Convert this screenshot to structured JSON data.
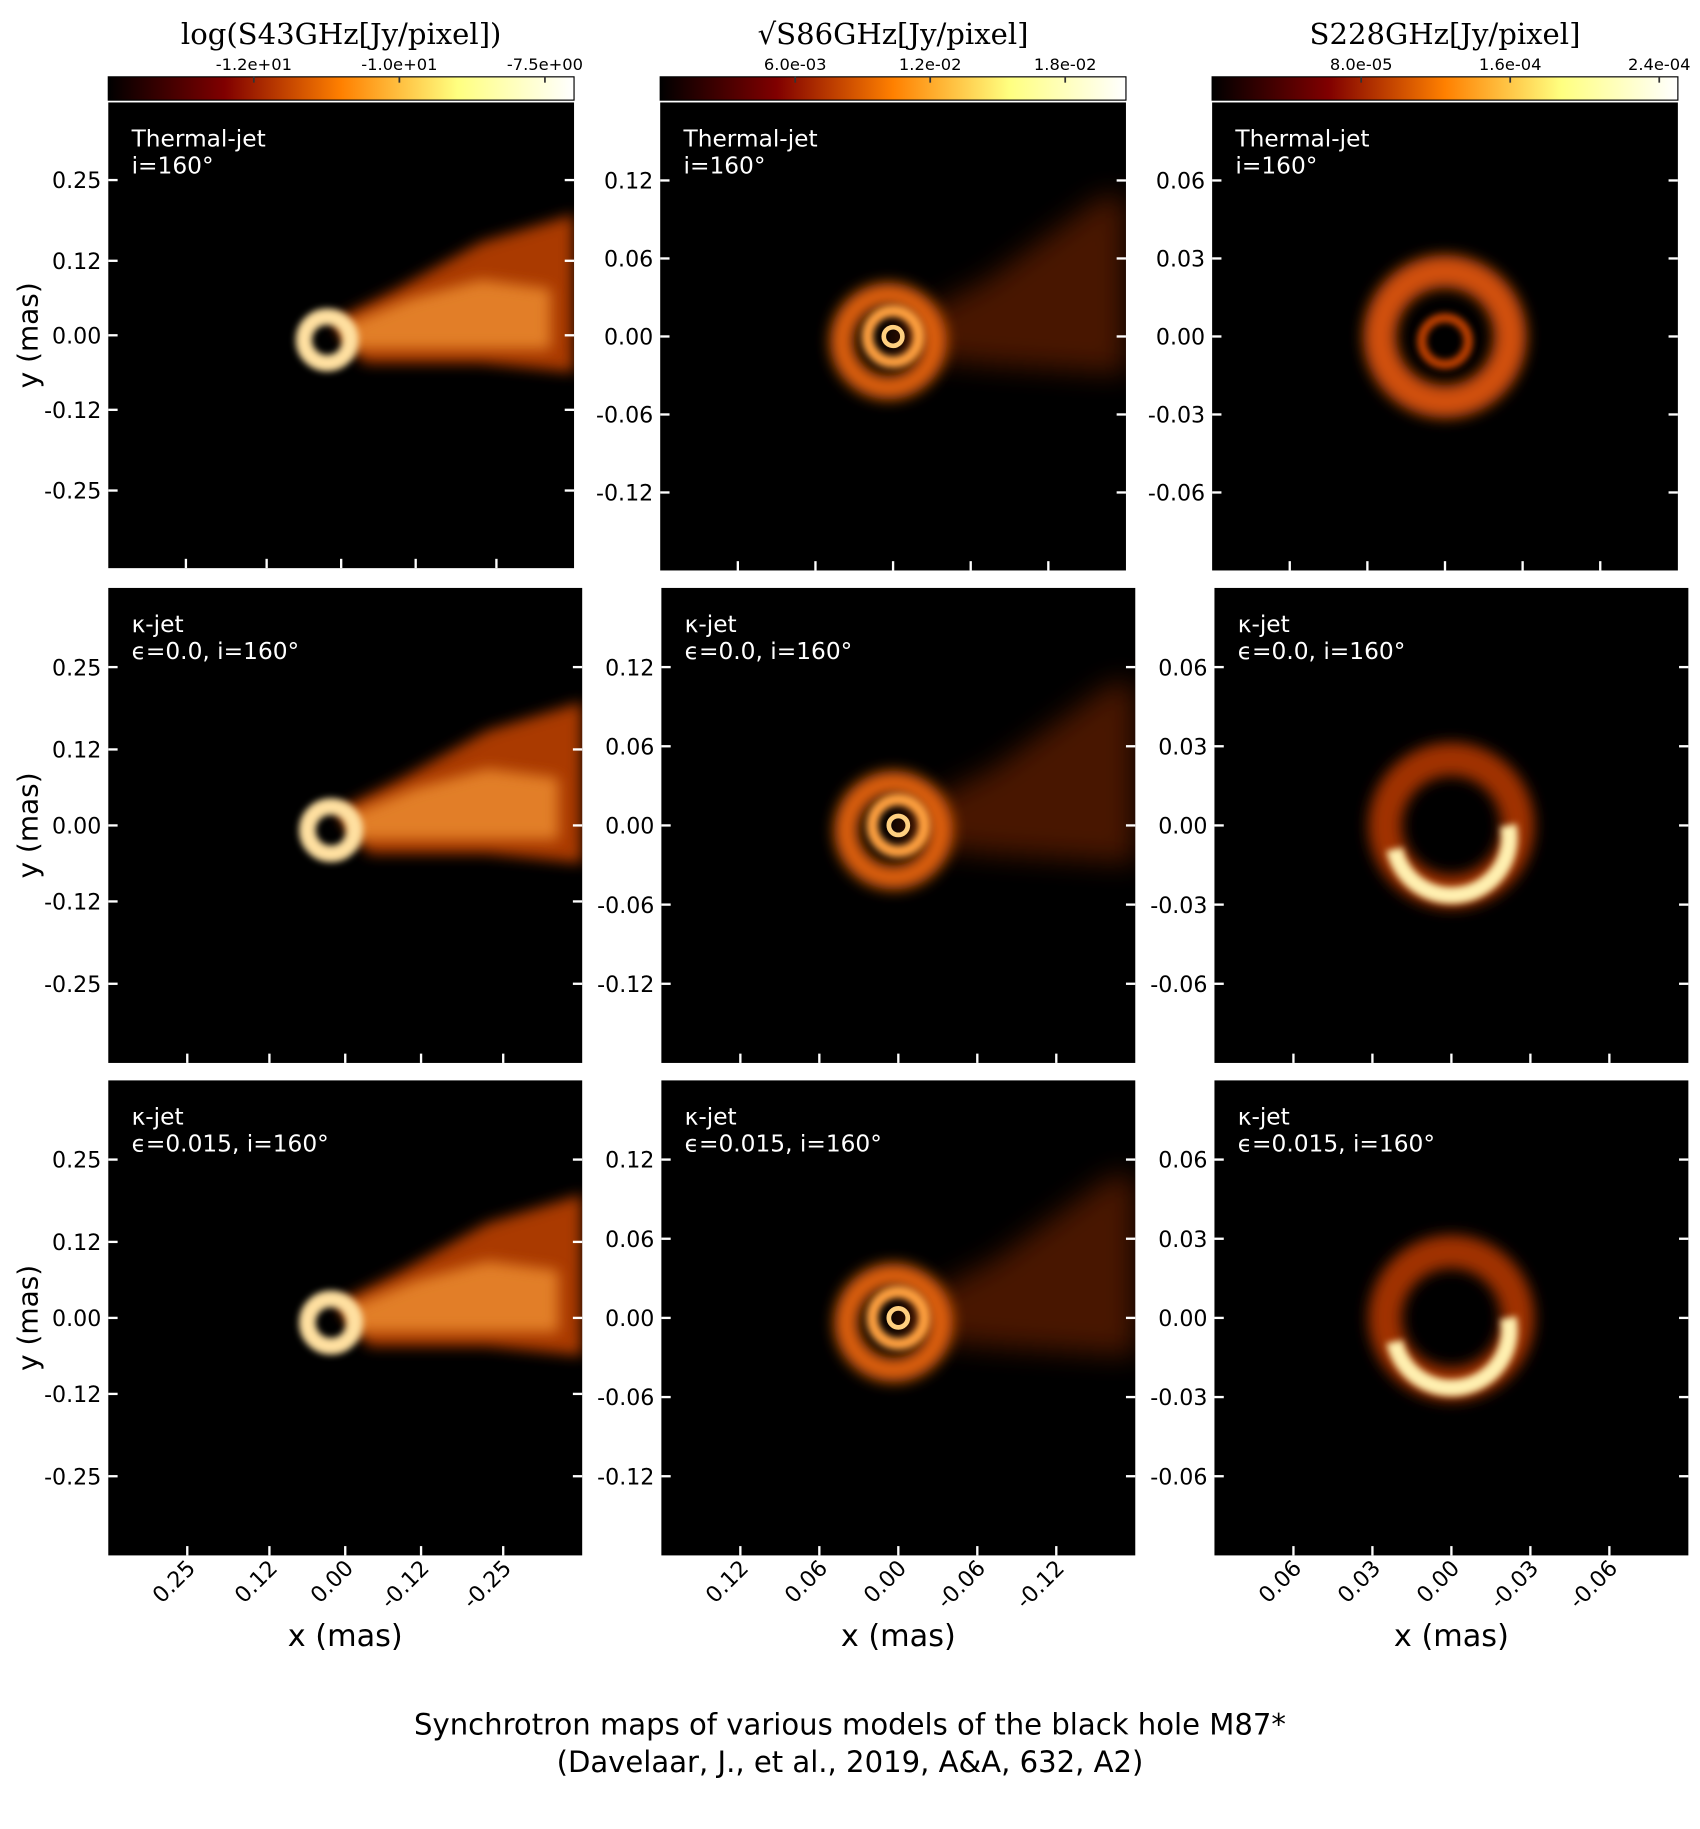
{
  "caption": [
    "Synchrotron maps of various models of the black hole M87*",
    "(Davelaar, J., et al., 2019, A&A, 632, A2)"
  ],
  "chart_data": [
    {
      "type": "image",
      "labels": [
        "Thermal-jet",
        "i=160°"
      ],
      "xlim": [
        0.375,
        -0.375
      ],
      "ylim": [
        -0.375,
        0.375
      ],
      "yticks": [
        0.25,
        0.12,
        {
          "value": 0,
          "label": "0.00"
        },
        -0.12,
        -0.25
      ],
      "ylabel": "y (mas)",
      "colorbar": {
        "title": "log(S43GHz[Jy/pixel])",
        "colormap": "afmhot",
        "clim": [
          -15,
          -7
        ],
        "ticks": [
          {
            "value": -12.5,
            "label": "-1.2e+01"
          },
          {
            "value": -10,
            "label": "-1.0e+01"
          },
          {
            "value": -7.5,
            "label": "-7.5e+00"
          }
        ]
      }
    },
    {
      "type": "image",
      "labels": [
        "Thermal-jet",
        "i=160°"
      ],
      "xlim": [
        0.18,
        -0.18
      ],
      "ylim": [
        -0.18,
        0.18
      ],
      "yticks": [
        0.12,
        0.06,
        {
          "value": 0,
          "label": "0.00"
        },
        -0.06,
        -0.12
      ],
      "colorbar": {
        "title": "√S86GHz[Jy/pixel]",
        "colormap": "afmhot",
        "clim": [
          0,
          0.0207
        ],
        "ticks": [
          {
            "value": 0.006,
            "label": "6.0e-03"
          },
          {
            "value": 0.012,
            "label": "1.2e-02"
          },
          {
            "value": 0.018,
            "label": "1.8e-02"
          }
        ]
      }
    },
    {
      "type": "image",
      "labels": [
        "Thermal-jet",
        "i=160°"
      ],
      "xlim": [
        0.09,
        -0.09
      ],
      "ylim": [
        -0.09,
        0.09
      ],
      "yticks": [
        0.06,
        0.03,
        {
          "value": 0,
          "label": "0.00"
        },
        -0.03,
        -0.06
      ],
      "colorbar": {
        "title": "S228GHz[Jy/pixel]",
        "colormap": "afmhot",
        "clim": [
          0,
          0.00025
        ],
        "ticks": [
          {
            "value": 8e-05,
            "label": "8.0e-05"
          },
          {
            "value": 0.00016,
            "label": "1.6e-04"
          },
          {
            "value": 0.00024,
            "label": "2.4e-04"
          }
        ]
      }
    },
    {
      "type": "image",
      "labels": [
        "κ-jet",
        "ϵ=0.0, i=160°"
      ],
      "xlim": [
        0.375,
        -0.375
      ],
      "ylim": [
        -0.375,
        0.375
      ],
      "yticks": [
        0.25,
        0.12,
        {
          "value": 0,
          "label": "0.00"
        },
        -0.12,
        -0.25
      ],
      "ylabel": "y (mas)"
    },
    {
      "type": "image",
      "labels": [
        "κ-jet",
        "ϵ=0.0, i=160°"
      ],
      "xlim": [
        0.18,
        -0.18
      ],
      "ylim": [
        -0.18,
        0.18
      ],
      "yticks": [
        0.12,
        0.06,
        {
          "value": 0,
          "label": "0.00"
        },
        -0.06,
        -0.12
      ]
    },
    {
      "type": "image",
      "labels": [
        "κ-jet",
        "ϵ=0.0, i=160°"
      ],
      "xlim": [
        0.09,
        -0.09
      ],
      "ylim": [
        -0.09,
        0.09
      ],
      "yticks": [
        0.06,
        0.03,
        {
          "value": 0,
          "label": "0.00"
        },
        -0.03,
        -0.06
      ]
    },
    {
      "type": "image",
      "labels": [
        "κ-jet",
        "ϵ=0.015, i=160°"
      ],
      "xlim": [
        0.375,
        -0.375
      ],
      "ylim": [
        -0.375,
        0.375
      ],
      "yticks": [
        0.25,
        0.12,
        {
          "value": 0,
          "label": "0.00"
        },
        -0.12,
        -0.25
      ],
      "ylabel": "y (mas)",
      "xticks": [
        0.25,
        0.12,
        {
          "value": 0,
          "label": "0.00"
        },
        -0.12,
        -0.25
      ],
      "xlabel": "x (mas)"
    },
    {
      "type": "image",
      "labels": [
        "κ-jet",
        "ϵ=0.015, i=160°"
      ],
      "xlim": [
        0.18,
        -0.18
      ],
      "ylim": [
        -0.18,
        0.18
      ],
      "yticks": [
        0.12,
        0.06,
        {
          "value": 0,
          "label": "0.00"
        },
        -0.06,
        -0.12
      ],
      "xticks": [
        0.12,
        0.06,
        {
          "value": 0,
          "label": "0.00"
        },
        -0.06,
        -0.12
      ],
      "xlabel": "x (mas)"
    },
    {
      "type": "image",
      "labels": [
        "κ-jet",
        "ϵ=0.015, i=160°"
      ],
      "xlim": [
        0.09,
        -0.09
      ],
      "ylim": [
        -0.09,
        0.09
      ],
      "yticks": [
        0.06,
        0.03,
        {
          "value": 0,
          "label": "0.00"
        },
        -0.03,
        -0.06
      ],
      "xticks": [
        0.06,
        0.03,
        {
          "value": 0,
          "label": "0.00"
        },
        -0.03,
        -0.06
      ],
      "xlabel": "x (mas)"
    }
  ]
}
